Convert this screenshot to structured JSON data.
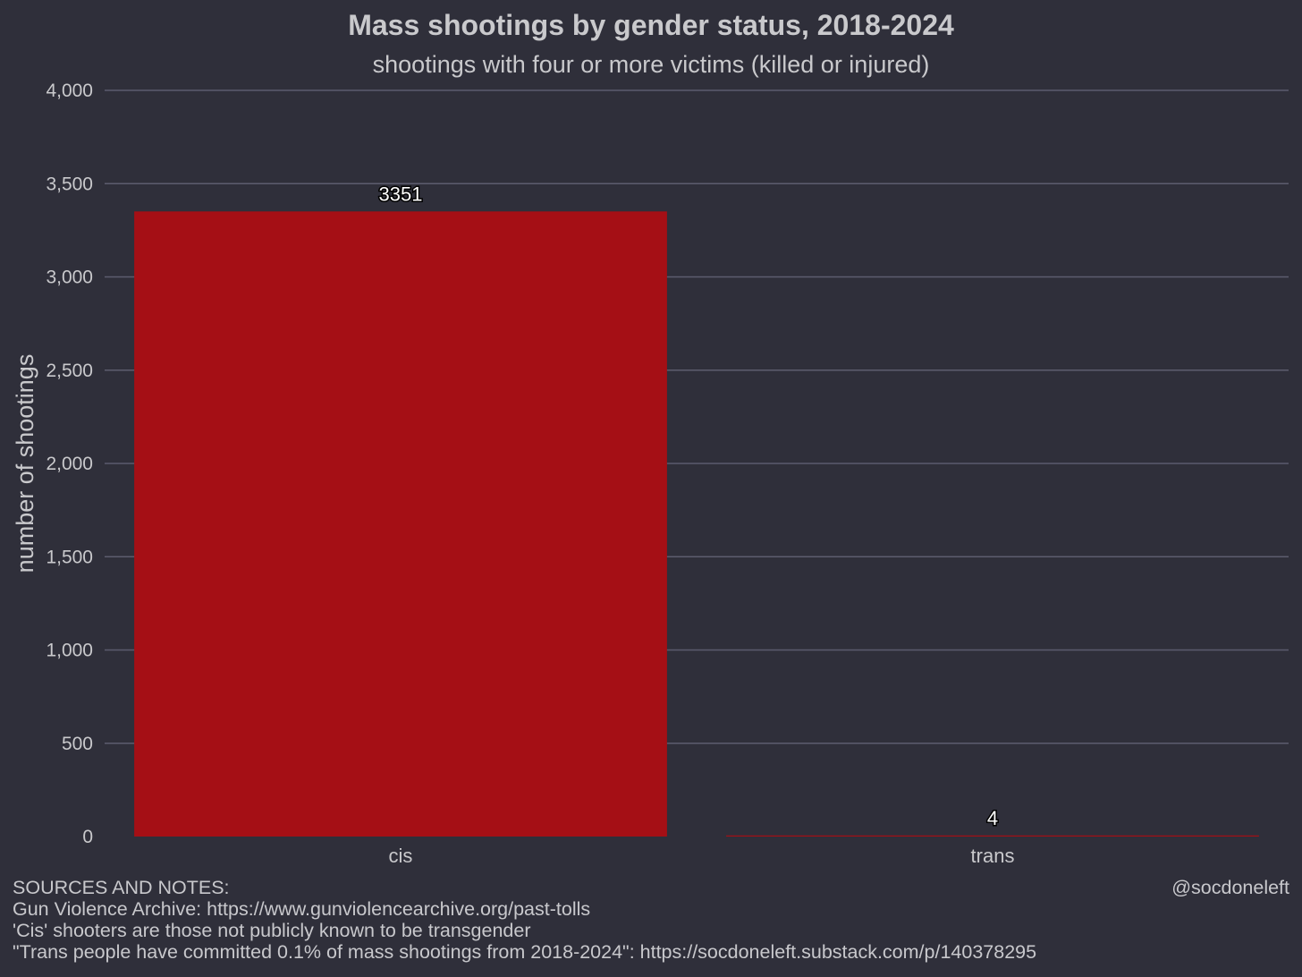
{
  "chart_data": {
    "type": "bar",
    "title": "Mass shootings by gender status, 2018-2024",
    "subtitle": "shootings with four or more victims (killed or injured)",
    "xlabel": "",
    "ylabel": "number of shootings",
    "categories": [
      "cis",
      "trans"
    ],
    "values": [
      3351,
      4
    ],
    "data_labels": [
      "3351",
      "4"
    ],
    "ylim": [
      0,
      4000
    ],
    "yticks": [
      0,
      500,
      1000,
      1500,
      2000,
      2500,
      3000,
      3500,
      4000
    ],
    "ytick_labels": [
      "0",
      "500",
      "1,000",
      "1,500",
      "2,000",
      "2,500",
      "3,000",
      "3,500",
      "4,000"
    ],
    "grid": "horizontal",
    "legend": "none",
    "colors": {
      "bar": "#a50f15",
      "background": "#2f2f3a",
      "grid": "#5c5c6e",
      "text": "#c9c9cc"
    }
  },
  "footer": {
    "heading": "SOURCES AND NOTES:",
    "lines": [
      "Gun Violence Archive: https://www.gunviolencearchive.org/past-tolls",
      "'Cis' shooters are those not publicly known to be transgender",
      "\"Trans people have committed 0.1% of mass shootings from 2018-2024\": https://socdoneleft.substack.com/p/140378295"
    ],
    "credit": "@socdoneleft"
  }
}
